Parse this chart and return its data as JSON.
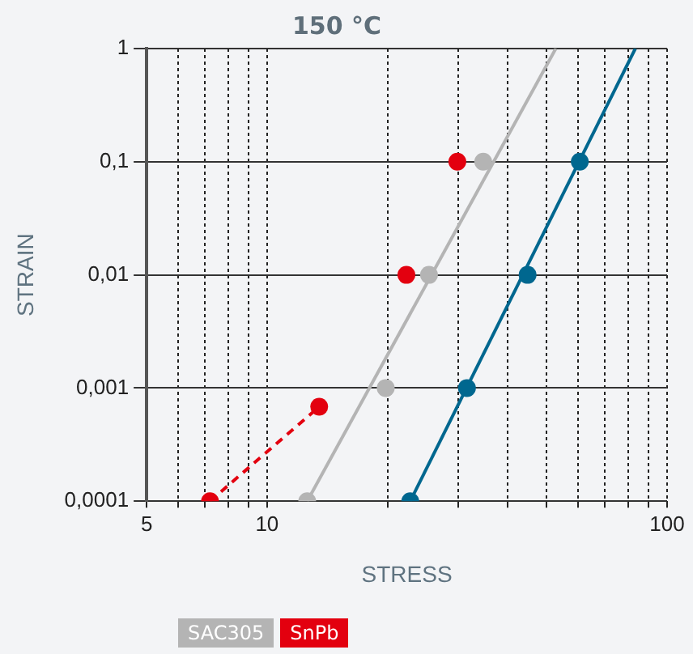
{
  "chart_data": {
    "type": "scatter",
    "title": "150 °C",
    "xlabel": "STRESS",
    "ylabel": "STRAIN",
    "log": "xy",
    "xlim": [
      5,
      100
    ],
    "xticks": [
      5,
      {
        "value": 6,
        "label": null
      },
      {
        "value": 7,
        "label": null
      },
      {
        "value": 8,
        "label": null
      },
      {
        "value": 9,
        "label": null
      },
      10,
      {
        "value": 20,
        "label": null
      },
      {
        "value": 30,
        "label": null
      },
      {
        "value": 40,
        "label": null
      },
      {
        "value": 50,
        "label": null
      },
      {
        "value": 60,
        "label": null
      },
      {
        "value": 70,
        "label": null
      },
      {
        "value": 80,
        "label": null
      },
      {
        "value": 90,
        "label": null
      },
      100
    ],
    "ylim": [
      0.0001,
      1
    ],
    "yticks": [
      {
        "value": 0.0001,
        "label": "0,0001"
      },
      {
        "value": 0.001,
        "label": "0,001"
      },
      {
        "value": 0.01,
        "label": "0,01"
      },
      {
        "value": 0.1,
        "label": "0,1"
      },
      1
    ],
    "grid": true,
    "legend": "bottom left",
    "series": [
      {
        "type": "line",
        "color": "#00678f",
        "x": [
          22.8,
          83.3
        ],
        "values": [
          0.0001,
          1
        ],
        "marker": "none",
        "line_style": "solid"
      },
      {
        "type": "scatter",
        "color": "#00678f",
        "x": [
          22.8,
          31.6,
          44.8,
          60.5
        ],
        "values": [
          0.0001,
          0.001,
          0.01,
          0.1
        ],
        "marker": "circle"
      },
      {
        "type": "line",
        "color": "#b4b4b4",
        "x": [
          12.6,
          52.7
        ],
        "values": [
          0.0001,
          1
        ],
        "marker": "none",
        "line_style": "solid"
      },
      {
        "type": "scatter",
        "name": "SAC305",
        "color": "#b4b4b4",
        "x": [
          12.6,
          19.8,
          25.4,
          34.7
        ],
        "values": [
          0.0001,
          0.001,
          0.01,
          0.1
        ],
        "marker": "circle"
      },
      {
        "type": "line",
        "color": "#e3000f",
        "x": [
          7.2,
          13.5
        ],
        "values": [
          0.0001,
          0.000684
        ],
        "marker": "none",
        "line_style": "dashed"
      },
      {
        "type": "scatter",
        "name": "SnPb",
        "color": "#e3000f",
        "x": [
          7.2,
          13.5,
          22.3,
          29.9
        ],
        "values": [
          0.0001,
          0.000684,
          0.01,
          0.1
        ],
        "marker": "circle"
      }
    ]
  }
}
